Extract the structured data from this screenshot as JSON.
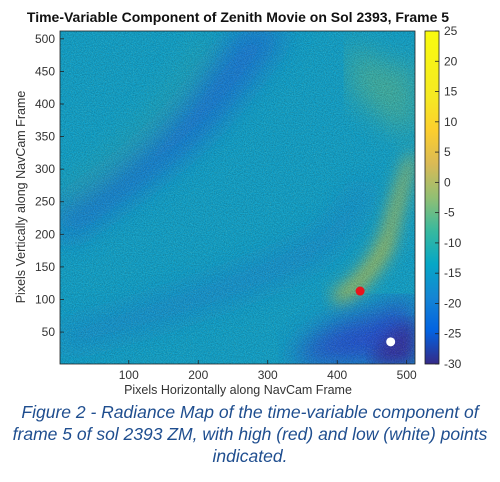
{
  "caption": "Figure 2 - Radiance Map of the time-variable component of frame 5 of sol 2393 ZM, with high (red) and low (white) points indicated.",
  "chart_data": {
    "type": "heatmap",
    "title": "Time-Variable Component of Zenith Movie on Sol 2393, Frame 5",
    "xlabel": "Pixels Horizontally along NavCam Frame",
    "ylabel": "Pixels Vertically along NavCam Frame",
    "xlim": [
      1,
      512
    ],
    "ylim": [
      1,
      512
    ],
    "xticks": [
      100,
      200,
      300,
      400,
      500
    ],
    "yticks": [
      50,
      100,
      150,
      200,
      250,
      300,
      350,
      400,
      450,
      500
    ],
    "colorbar": {
      "colormap": "parula",
      "clim": [
        -30,
        25
      ],
      "ticks": [
        25,
        20,
        15,
        10,
        5,
        0,
        -5,
        -10,
        -15,
        -20,
        -25,
        -30
      ]
    },
    "points": [
      {
        "label": "high",
        "color": "#e8141c",
        "x": 433,
        "y": 113
      },
      {
        "label": "low",
        "color": "#ffffff",
        "x": 477,
        "y": 35
      }
    ],
    "grid": false
  }
}
